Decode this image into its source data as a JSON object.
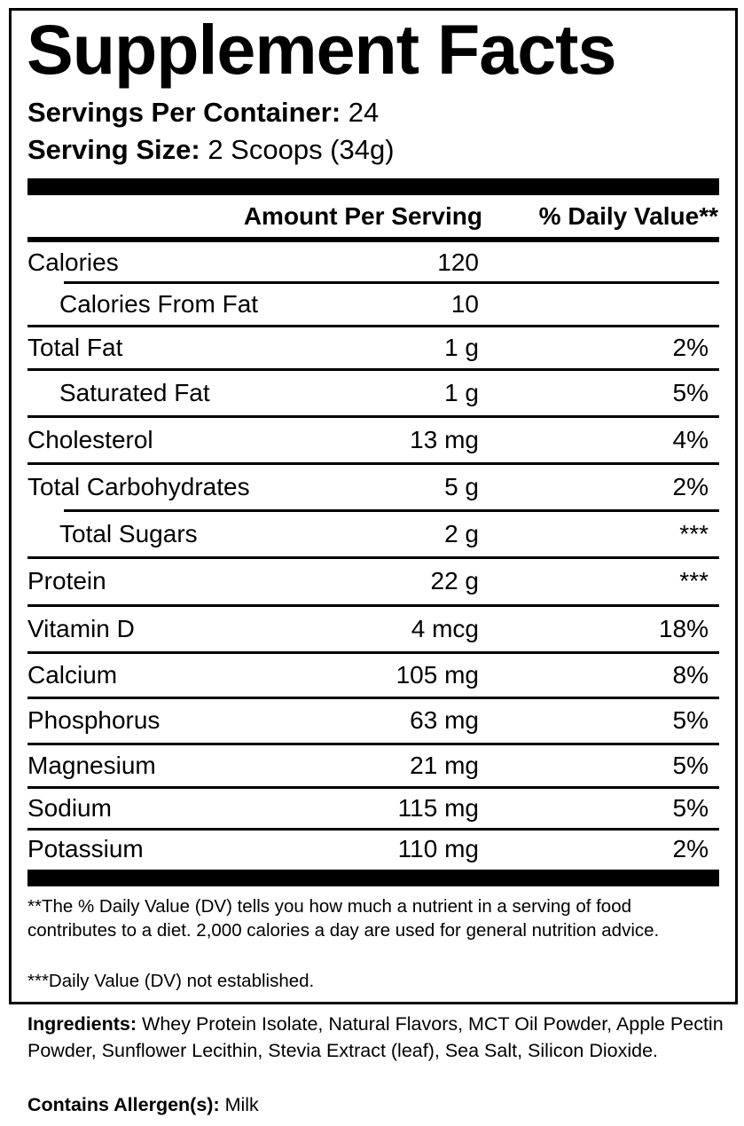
{
  "title": "Supplement Facts",
  "servings_per_container": {
    "label": "Servings Per Container:",
    "value": "24"
  },
  "serving_size": {
    "label": "Serving Size:",
    "value": "2 Scoops (34g)"
  },
  "header": {
    "amount": "Amount Per Serving",
    "daily_value": "% Daily Value**"
  },
  "nutrients": [
    {
      "name": "Calories",
      "amount": "120",
      "dv": "",
      "indent": false
    },
    {
      "name": "Calories From Fat",
      "amount": "10",
      "dv": "",
      "indent": true
    },
    {
      "name": "Total Fat",
      "amount": "1 g",
      "dv": "2%",
      "indent": false
    },
    {
      "name": "Saturated Fat",
      "amount": "1 g",
      "dv": "5%",
      "indent": true
    },
    {
      "name": "Cholesterol",
      "amount": "13 mg",
      "dv": "4%",
      "indent": false
    },
    {
      "name": "Total Carbohydrates",
      "amount": "5 g",
      "dv": "2%",
      "indent": false
    },
    {
      "name": "Total Sugars",
      "amount": "2 g",
      "dv": "***",
      "indent": true
    },
    {
      "name": "Protein",
      "amount": "22 g",
      "dv": "***",
      "indent": false
    },
    {
      "name": "Vitamin D",
      "amount": "4 mcg",
      "dv": "18%",
      "indent": false
    },
    {
      "name": "Calcium",
      "amount": "105 mg",
      "dv": "8%",
      "indent": false
    },
    {
      "name": "Phosphorus",
      "amount": "63 mg",
      "dv": "5%",
      "indent": false
    },
    {
      "name": "Magnesium",
      "amount": "21 mg",
      "dv": "5%",
      "indent": false
    },
    {
      "name": "Sodium",
      "amount": "115 mg",
      "dv": "5%",
      "indent": false
    },
    {
      "name": "Potassium",
      "amount": "110 mg",
      "dv": "2%",
      "indent": false
    }
  ],
  "footnotes": [
    "**The % Daily Value (DV) tells you how much a nutrient in a serving of food contributes to a diet. 2,000 calories a day are used for general nutrition advice.",
    "***Daily Value (DV) not established."
  ],
  "ingredients": {
    "label": "Ingredients:",
    "text": "Whey Protein Isolate, Natural Flavors, MCT Oil Powder, Apple Pectin Powder, Sunflower Lecithin, Stevia Extract (leaf), Sea Salt, Silicon Dioxide."
  },
  "allergens": {
    "label": "Contains Allergen(s):",
    "text": "Milk"
  }
}
